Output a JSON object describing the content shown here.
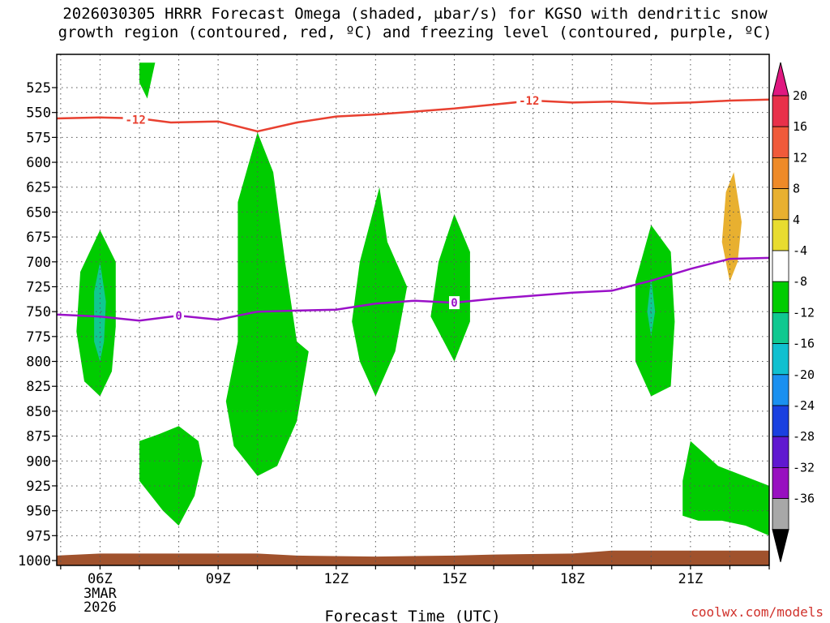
{
  "title_line1": "2026030305 HRRR Forecast Omega (shaded, μbar/s) for KGSO with dendritic snow",
  "title_line2": "growth region (contoured, red, ºC) and freezing level (contoured, purple, ºC)",
  "xlabel": "Forecast Time (UTC)",
  "credit": "coolwx.com/models",
  "chart_data": {
    "type": "time-height cross section",
    "y_axis": {
      "label": "",
      "scale": "pressure",
      "range": [
        1000,
        500
      ],
      "ticks": [
        525,
        550,
        575,
        600,
        625,
        650,
        675,
        700,
        725,
        750,
        775,
        800,
        825,
        850,
        875,
        900,
        925,
        950,
        975,
        1000
      ]
    },
    "x_axis": {
      "label": "Forecast Time (UTC)",
      "range_hours": [
        4.9,
        23.0
      ],
      "ticks": [
        {
          "hour": 6,
          "label": "06Z",
          "sub1": "3MAR",
          "sub2": "2026"
        },
        {
          "hour": 9,
          "label": "09Z"
        },
        {
          "hour": 12,
          "label": "12Z"
        },
        {
          "hour": 15,
          "label": "15Z"
        },
        {
          "hour": 18,
          "label": "18Z"
        },
        {
          "hour": 21,
          "label": "21Z"
        }
      ]
    },
    "grid": true,
    "colorbar": {
      "levels": [
        20,
        16,
        12,
        8,
        4,
        -4,
        -8,
        -12,
        -16,
        -20,
        -24,
        -28,
        -32,
        -36
      ],
      "colors": [
        "#e8304a",
        "#f05a3a",
        "#ee8a28",
        "#e8b030",
        "#e8dc30",
        "#ffffff",
        "#00cc00",
        "#10c890",
        "#10c0d0",
        "#1a90f0",
        "#1a40e0",
        "#6018d0",
        "#9810c0",
        "#a8a8a8"
      ],
      "top_arrow": "#e01880",
      "bottom_arrow": "#000000"
    },
    "contours": [
      {
        "name": "",
        "value": -12,
        "color": "#e84030",
        "points": [
          [
            4.9,
            556
          ],
          [
            6,
            555
          ],
          [
            7,
            556
          ],
          [
            7.8,
            560
          ],
          [
            9,
            559
          ],
          [
            10,
            569
          ],
          [
            11,
            560
          ],
          [
            12,
            554
          ],
          [
            13,
            552
          ],
          [
            14,
            549
          ],
          [
            15,
            546
          ],
          [
            16,
            542
          ],
          [
            17,
            538
          ],
          [
            18,
            540
          ],
          [
            19,
            539
          ],
          [
            20,
            541
          ],
          [
            21,
            540
          ],
          [
            22,
            538
          ],
          [
            23,
            537
          ]
        ]
      },
      {
        "name": "",
        "value": 0,
        "color": "#9a10c8",
        "points": [
          [
            4.9,
            753
          ],
          [
            6,
            755
          ],
          [
            7,
            759
          ],
          [
            8,
            754
          ],
          [
            9,
            758
          ],
          [
            10,
            750
          ],
          [
            11,
            749
          ],
          [
            12,
            748
          ],
          [
            13,
            742
          ],
          [
            14,
            739
          ],
          [
            15,
            741
          ],
          [
            16,
            737
          ],
          [
            17,
            734
          ],
          [
            18,
            731
          ],
          [
            19,
            729
          ],
          [
            20,
            719
          ],
          [
            21,
            707
          ],
          [
            22,
            697
          ],
          [
            23,
            696
          ]
        ]
      }
    ],
    "contour_labels": [
      {
        "text": "-12",
        "hour": 6.9,
        "p": 557,
        "color": "#e84030"
      },
      {
        "text": "-12",
        "hour": 16.9,
        "p": 538,
        "color": "#e84030"
      },
      {
        "text": "0",
        "hour": 8.0,
        "p": 754,
        "color": "#9a10c8"
      },
      {
        "text": "0",
        "hour": 15.0,
        "p": 741,
        "color": "#9a10c8"
      }
    ],
    "shaded_regions": [
      {
        "value_range": [
          -8,
          -4
        ],
        "points": [
          [
            7.0,
            500
          ],
          [
            7.4,
            500
          ],
          [
            7.2,
            536
          ],
          [
            7.0,
            520
          ]
        ]
      },
      {
        "value_range": [
          -8,
          -4
        ],
        "points": [
          [
            6.0,
            668
          ],
          [
            6.4,
            700
          ],
          [
            6.4,
            765
          ],
          [
            6.3,
            810
          ],
          [
            6.0,
            835
          ],
          [
            5.6,
            820
          ],
          [
            5.4,
            770
          ],
          [
            5.5,
            710
          ]
        ]
      },
      {
        "value_range": [
          -12,
          -8
        ],
        "points": [
          [
            6.0,
            700
          ],
          [
            6.15,
            740
          ],
          [
            6.1,
            780
          ],
          [
            6.0,
            800
          ],
          [
            5.85,
            780
          ],
          [
            5.85,
            730
          ]
        ]
      },
      {
        "value_range": [
          -8,
          -4
        ],
        "points": [
          [
            7.0,
            880
          ],
          [
            7.5,
            873
          ],
          [
            8.0,
            865
          ],
          [
            8.5,
            880
          ],
          [
            8.6,
            900
          ],
          [
            8.4,
            935
          ],
          [
            8.0,
            965
          ],
          [
            7.6,
            950
          ],
          [
            7.0,
            920
          ]
        ]
      },
      {
        "value_range": [
          -8,
          -4
        ],
        "points": [
          [
            10.0,
            570
          ],
          [
            10.4,
            610
          ],
          [
            10.7,
            700
          ],
          [
            11.0,
            780
          ],
          [
            11.3,
            790
          ],
          [
            11.0,
            860
          ],
          [
            10.5,
            905
          ],
          [
            10.0,
            915
          ],
          [
            9.4,
            885
          ],
          [
            9.2,
            840
          ],
          [
            9.5,
            780
          ],
          [
            9.5,
            640
          ]
        ]
      },
      {
        "value_range": [
          -8,
          -4
        ],
        "points": [
          [
            13.1,
            625
          ],
          [
            13.3,
            680
          ],
          [
            13.8,
            725
          ],
          [
            13.5,
            790
          ],
          [
            13.0,
            835
          ],
          [
            12.6,
            800
          ],
          [
            12.4,
            760
          ],
          [
            12.6,
            700
          ]
        ]
      },
      {
        "value_range": [
          -8,
          -4
        ],
        "points": [
          [
            15.0,
            652
          ],
          [
            15.4,
            690
          ],
          [
            15.4,
            760
          ],
          [
            15.0,
            800
          ],
          [
            14.4,
            755
          ],
          [
            14.6,
            700
          ]
        ]
      },
      {
        "value_range": [
          -8,
          -4
        ],
        "points": [
          [
            20.0,
            663
          ],
          [
            20.5,
            690
          ],
          [
            20.6,
            760
          ],
          [
            20.5,
            825
          ],
          [
            20.0,
            835
          ],
          [
            19.6,
            800
          ],
          [
            19.6,
            720
          ]
        ]
      },
      {
        "value_range": [
          -12,
          -8
        ],
        "points": [
          [
            20.0,
            715
          ],
          [
            20.1,
            750
          ],
          [
            20.0,
            775
          ],
          [
            19.9,
            750
          ]
        ]
      },
      {
        "value_range": [
          8,
          4
        ],
        "points": [
          [
            22.1,
            610
          ],
          [
            22.3,
            660
          ],
          [
            22.2,
            700
          ],
          [
            22.0,
            720
          ],
          [
            21.8,
            680
          ],
          [
            21.9,
            630
          ]
        ]
      },
      {
        "value_range": [
          -8,
          -4
        ],
        "points": [
          [
            21.0,
            880
          ],
          [
            21.7,
            905
          ],
          [
            23.0,
            925
          ],
          [
            23.0,
            975
          ],
          [
            22.4,
            965
          ],
          [
            21.8,
            960
          ],
          [
            21.2,
            960
          ],
          [
            20.8,
            955
          ],
          [
            20.8,
            920
          ]
        ]
      }
    ],
    "terrain": {
      "color": "#a0522d",
      "points": [
        [
          4.9,
          995
        ],
        [
          6,
          993
        ],
        [
          8,
          993
        ],
        [
          10,
          993
        ],
        [
          11,
          995
        ],
        [
          13,
          996
        ],
        [
          15,
          995
        ],
        [
          16,
          994
        ],
        [
          18,
          993
        ],
        [
          19,
          990
        ],
        [
          20,
          990
        ],
        [
          23,
          990
        ]
      ]
    }
  }
}
